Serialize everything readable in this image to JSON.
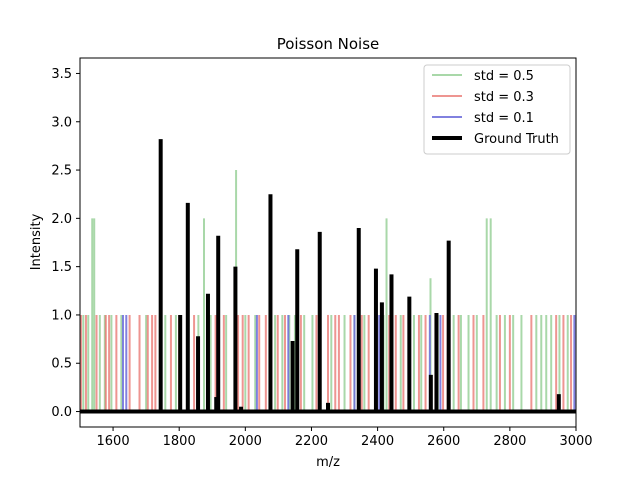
{
  "chart_data": {
    "type": "line",
    "title": "Poisson Noise",
    "xlabel": "m/z",
    "ylabel": "Intensity",
    "xlim": [
      1500,
      3000
    ],
    "ylim": [
      -0.16,
      3.66
    ],
    "x_ticks": [
      1600,
      1800,
      2000,
      2200,
      2400,
      2600,
      2800,
      3000
    ],
    "y_ticks": [
      0.0,
      0.5,
      1.0,
      1.5,
      2.0,
      2.5,
      3.0,
      3.5
    ],
    "x_tick_labels": [
      "1600",
      "1800",
      "2000",
      "2200",
      "2400",
      "2600",
      "2800",
      "3000"
    ],
    "y_tick_labels": [
      "0.0",
      "0.5",
      "1.0",
      "1.5",
      "2.0",
      "2.5",
      "3.0",
      "3.5"
    ],
    "legend_position": "top-right",
    "grid": false,
    "series": [
      {
        "name": "std = 0.5",
        "color": "#8ccb8c",
        "style": "vertical-lines",
        "points": [
          {
            "x": 1510,
            "y": 1
          },
          {
            "x": 1525,
            "y": 1
          },
          {
            "x": 1537,
            "y": 2
          },
          {
            "x": 1543,
            "y": 2
          },
          {
            "x": 1560,
            "y": 1
          },
          {
            "x": 1575,
            "y": 1
          },
          {
            "x": 1595,
            "y": 1
          },
          {
            "x": 1625,
            "y": 1
          },
          {
            "x": 1700,
            "y": 1
          },
          {
            "x": 1758,
            "y": 1
          },
          {
            "x": 1790,
            "y": 1
          },
          {
            "x": 1828,
            "y": 1
          },
          {
            "x": 1858,
            "y": 1
          },
          {
            "x": 1875,
            "y": 2
          },
          {
            "x": 1895,
            "y": 1
          },
          {
            "x": 1918,
            "y": 1
          },
          {
            "x": 1942,
            "y": 1
          },
          {
            "x": 1972,
            "y": 2.5
          },
          {
            "x": 2000,
            "y": 1
          },
          {
            "x": 2030,
            "y": 1
          },
          {
            "x": 2090,
            "y": 1
          },
          {
            "x": 2112,
            "y": 1
          },
          {
            "x": 2133,
            "y": 1
          },
          {
            "x": 2150,
            "y": 1
          },
          {
            "x": 2178,
            "y": 1
          },
          {
            "x": 2203,
            "y": 1
          },
          {
            "x": 2260,
            "y": 1
          },
          {
            "x": 2300,
            "y": 1
          },
          {
            "x": 2330,
            "y": 1
          },
          {
            "x": 2360,
            "y": 1
          },
          {
            "x": 2418,
            "y": 1
          },
          {
            "x": 2427,
            "y": 2
          },
          {
            "x": 2470,
            "y": 1
          },
          {
            "x": 2510,
            "y": 1
          },
          {
            "x": 2532,
            "y": 1
          },
          {
            "x": 2560,
            "y": 1.38
          },
          {
            "x": 2582,
            "y": 1
          },
          {
            "x": 2630,
            "y": 1
          },
          {
            "x": 2652,
            "y": 1
          },
          {
            "x": 2675,
            "y": 1
          },
          {
            "x": 2700,
            "y": 1
          },
          {
            "x": 2730,
            "y": 2
          },
          {
            "x": 2742,
            "y": 2
          },
          {
            "x": 2760,
            "y": 1
          },
          {
            "x": 2785,
            "y": 1
          },
          {
            "x": 2810,
            "y": 1
          },
          {
            "x": 2835,
            "y": 1
          },
          {
            "x": 2880,
            "y": 1
          },
          {
            "x": 2895,
            "y": 1
          },
          {
            "x": 2910,
            "y": 1
          },
          {
            "x": 2925,
            "y": 1
          },
          {
            "x": 2950,
            "y": 1
          },
          {
            "x": 2975,
            "y": 1
          }
        ]
      },
      {
        "name": "std = 0.3",
        "color": "#e8726c",
        "style": "vertical-lines",
        "points": [
          {
            "x": 1503,
            "y": 1
          },
          {
            "x": 1518,
            "y": 1
          },
          {
            "x": 1550,
            "y": 1
          },
          {
            "x": 1578,
            "y": 1
          },
          {
            "x": 1588,
            "y": 1
          },
          {
            "x": 1610,
            "y": 1
          },
          {
            "x": 1650,
            "y": 1
          },
          {
            "x": 1680,
            "y": 1
          },
          {
            "x": 1705,
            "y": 1
          },
          {
            "x": 1718,
            "y": 1
          },
          {
            "x": 1728,
            "y": 1
          },
          {
            "x": 1775,
            "y": 1
          },
          {
            "x": 1800,
            "y": 1
          },
          {
            "x": 1845,
            "y": 1
          },
          {
            "x": 1910,
            "y": 1
          },
          {
            "x": 1935,
            "y": 1
          },
          {
            "x": 1978,
            "y": 1
          },
          {
            "x": 1992,
            "y": 1
          },
          {
            "x": 2010,
            "y": 1
          },
          {
            "x": 2042,
            "y": 1
          },
          {
            "x": 2062,
            "y": 1
          },
          {
            "x": 2098,
            "y": 1
          },
          {
            "x": 2120,
            "y": 1
          },
          {
            "x": 2168,
            "y": 1
          },
          {
            "x": 2215,
            "y": 1
          },
          {
            "x": 2250,
            "y": 1
          },
          {
            "x": 2272,
            "y": 1
          },
          {
            "x": 2283,
            "y": 1
          },
          {
            "x": 2318,
            "y": 1
          },
          {
            "x": 2352,
            "y": 1
          },
          {
            "x": 2373,
            "y": 1
          },
          {
            "x": 2393,
            "y": 1
          },
          {
            "x": 2435,
            "y": 1
          },
          {
            "x": 2455,
            "y": 1
          },
          {
            "x": 2478,
            "y": 1
          },
          {
            "x": 2525,
            "y": 1
          },
          {
            "x": 2545,
            "y": 1
          },
          {
            "x": 2575,
            "y": 1
          },
          {
            "x": 2598,
            "y": 1
          },
          {
            "x": 2612,
            "y": 1
          },
          {
            "x": 2645,
            "y": 1
          },
          {
            "x": 2690,
            "y": 1
          },
          {
            "x": 2720,
            "y": 1
          },
          {
            "x": 2770,
            "y": 1
          },
          {
            "x": 2800,
            "y": 1
          },
          {
            "x": 2865,
            "y": 1
          },
          {
            "x": 2940,
            "y": 1
          },
          {
            "x": 2962,
            "y": 1
          },
          {
            "x": 2985,
            "y": 1
          }
        ]
      },
      {
        "name": "std = 0.1",
        "color": "#6b6bd9",
        "style": "vertical-lines",
        "points": [
          {
            "x": 1630,
            "y": 1
          },
          {
            "x": 1640,
            "y": 1
          },
          {
            "x": 2035,
            "y": 1
          },
          {
            "x": 2130,
            "y": 1
          },
          {
            "x": 2330,
            "y": 1
          },
          {
            "x": 2405,
            "y": 1
          },
          {
            "x": 2445,
            "y": 1
          },
          {
            "x": 2558,
            "y": 1
          },
          {
            "x": 2590,
            "y": 1
          },
          {
            "x": 2995,
            "y": 1
          }
        ]
      },
      {
        "name": "Ground Truth",
        "color": "#000000",
        "style": "vertical-lines",
        "points": [
          {
            "x": 1744,
            "y": 2.82
          },
          {
            "x": 1803,
            "y": 1.0
          },
          {
            "x": 1826,
            "y": 2.16
          },
          {
            "x": 1857,
            "y": 0.78
          },
          {
            "x": 1887,
            "y": 1.22
          },
          {
            "x": 1912,
            "y": 0.15
          },
          {
            "x": 1918,
            "y": 1.82
          },
          {
            "x": 1970,
            "y": 1.5
          },
          {
            "x": 1987,
            "y": 0.05
          },
          {
            "x": 2076,
            "y": 2.25
          },
          {
            "x": 2143,
            "y": 0.73
          },
          {
            "x": 2157,
            "y": 1.68
          },
          {
            "x": 2222,
            "y": 0.02
          },
          {
            "x": 2225,
            "y": 1.86
          },
          {
            "x": 2250,
            "y": 0.09
          },
          {
            "x": 2343,
            "y": 1.9
          },
          {
            "x": 2395,
            "y": 1.48
          },
          {
            "x": 2413,
            "y": 1.13
          },
          {
            "x": 2442,
            "y": 1.42
          },
          {
            "x": 2496,
            "y": 1.19
          },
          {
            "x": 2561,
            "y": 0.38
          },
          {
            "x": 2578,
            "y": 1.02
          },
          {
            "x": 2615,
            "y": 1.77
          },
          {
            "x": 2948,
            "y": 0.18
          }
        ]
      }
    ]
  }
}
